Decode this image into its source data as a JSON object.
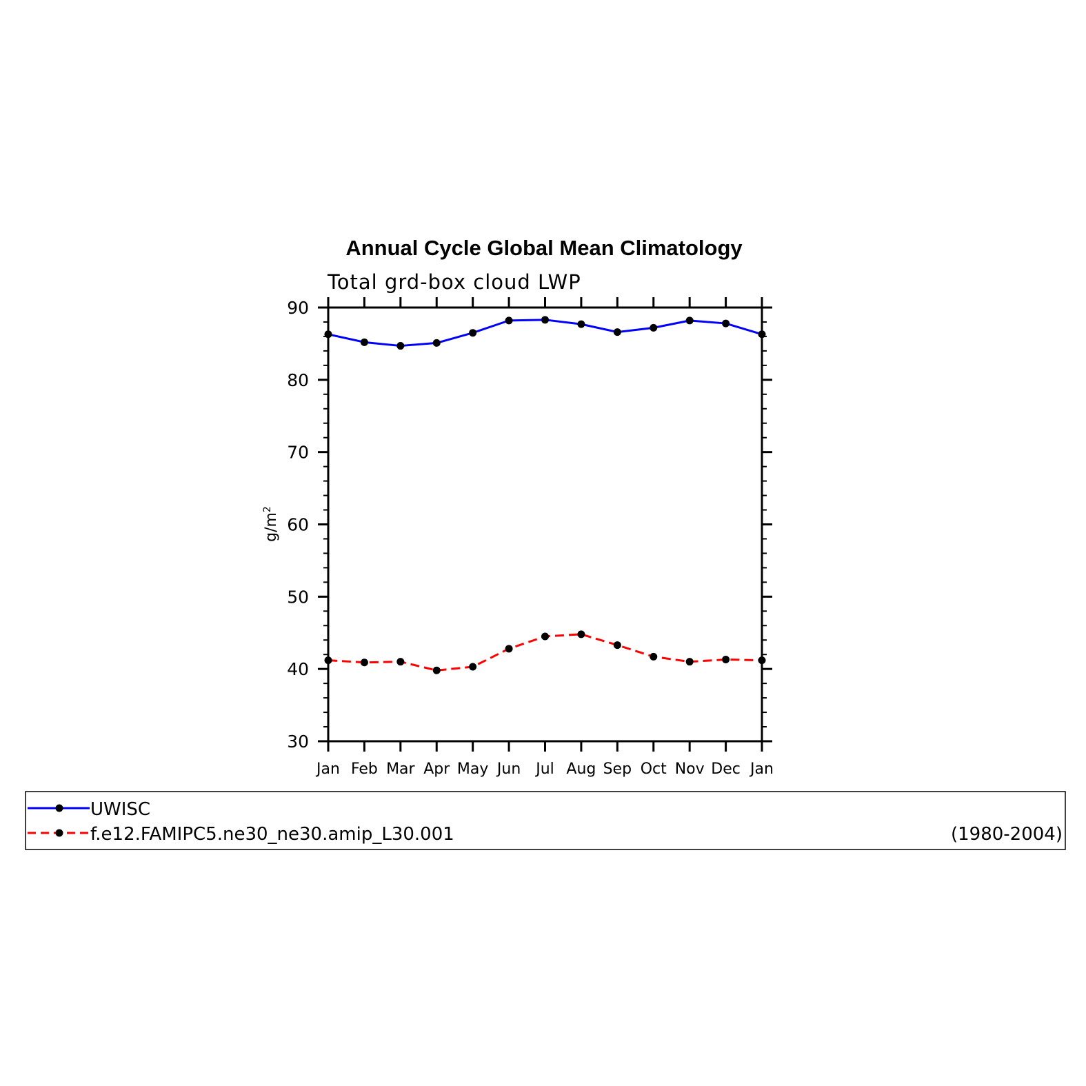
{
  "chart_data": {
    "type": "line",
    "title": "Annual Cycle Global Mean Climatology",
    "subtitle": "Total grd-box cloud LWP",
    "ylabel": "g/m",
    "ylabel_superscript": "2",
    "ylim": [
      30,
      90
    ],
    "yticks": [
      "30",
      "40",
      "50",
      "60",
      "70",
      "80",
      "90"
    ],
    "categories": [
      "Jan",
      "Feb",
      "Mar",
      "Apr",
      "May",
      "Jun",
      "Jul",
      "Aug",
      "Sep",
      "Oct",
      "Nov",
      "Dec",
      "Jan"
    ],
    "series": [
      {
        "name": "UWISC",
        "color": "#0000ff",
        "line_style": "solid",
        "values": [
          86.3,
          85.2,
          84.7,
          85.1,
          86.5,
          88.2,
          88.3,
          87.7,
          86.6,
          87.2,
          88.2,
          87.8,
          86.3
        ]
      },
      {
        "name": "f.e12.FAMIPC5.ne30_ne30.amip_L30.001",
        "color": "#ff0000",
        "line_style": "dashed",
        "values": [
          41.2,
          40.9,
          41.0,
          39.8,
          40.3,
          42.8,
          44.5,
          44.8,
          43.3,
          41.7,
          41.0,
          41.3,
          41.2
        ]
      }
    ],
    "legend_period": "(1980-2004)",
    "grid": false,
    "legend_placement": "bottom"
  }
}
